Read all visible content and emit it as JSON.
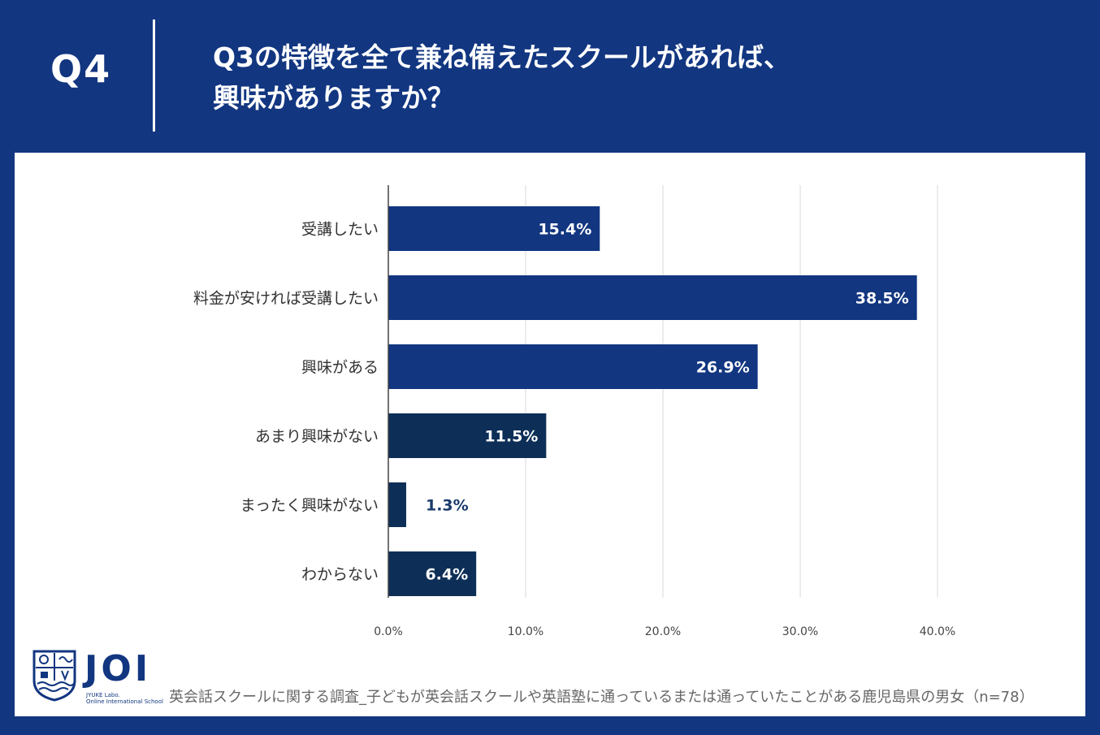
{
  "header": {
    "question_number": "Q4",
    "title_line1": "Q3の特徴を全て兼ね備えたスクールがあれば、",
    "title_line2": "興味がありますか？"
  },
  "colors": {
    "background": "#123680",
    "bar_primary": "#123680",
    "bar_secondary": "#0d2f57",
    "grid": "#d9d9d9",
    "label_outside": "#1a3a6b"
  },
  "chart_data": {
    "type": "bar",
    "orientation": "horizontal",
    "categories": [
      "受講したい",
      "料金が安ければ受講したい",
      "興味がある",
      "あまり興味がない",
      "まったく興味がない",
      "わからない"
    ],
    "values": [
      15.4,
      38.5,
      26.9,
      11.5,
      1.3,
      6.4
    ],
    "value_labels": [
      "15.4%",
      "38.5%",
      "26.9%",
      "11.5%",
      "1.3%",
      "6.4%"
    ],
    "bar_groups": [
      "primary",
      "primary",
      "primary",
      "secondary",
      "secondary",
      "secondary"
    ],
    "xlim": [
      0,
      40
    ],
    "xticks": [
      0,
      10,
      20,
      30,
      40
    ],
    "xtick_labels": [
      "0.0%",
      "10.0%",
      "20.0%",
      "30.0%",
      "40.0%"
    ],
    "grid": true,
    "title": "",
    "xlabel": "",
    "ylabel": ""
  },
  "logo": {
    "name": "JOI",
    "subtitle_line1": "JYUKE Labo.",
    "subtitle_line2": "Online International School"
  },
  "footnote": "英会話スクールに関する調査_子どもが英会話スクールや英語塾に通っているまたは通っていたことがある鹿児島県の男女（n=78）"
}
